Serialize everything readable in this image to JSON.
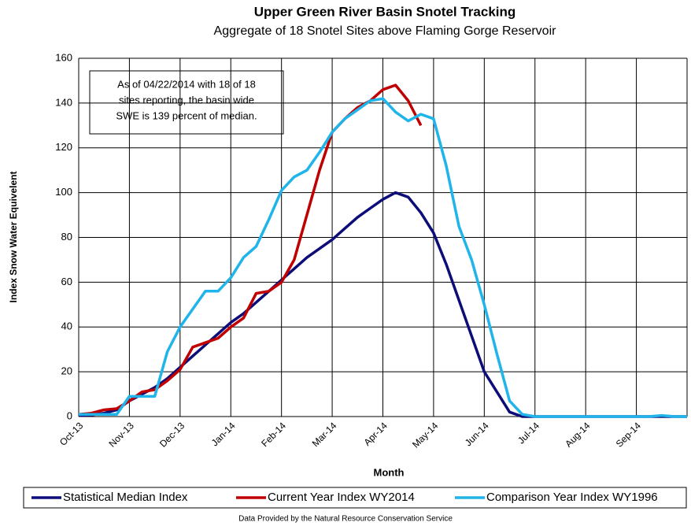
{
  "chart_data": {
    "type": "line",
    "title": "Upper Green River Basin Snotel Tracking",
    "subtitle": "Aggregate of 18 Snotel Sites above Flaming Gorge Reservoir",
    "x_label": "Month",
    "y_label": "Index Snow Water Equivelent",
    "annotation": [
      "As of 04/22/2014 with 18 of 18",
      "sites reporting, the basin wide",
      "SWE is 139 percent of median."
    ],
    "source": "Data Provided by the Natural Resource Conservation Service",
    "categories": [
      "Oct-13",
      null,
      null,
      null,
      "Nov-13",
      null,
      null,
      null,
      "Dec-13",
      null,
      null,
      null,
      "Jan-14",
      null,
      null,
      null,
      "Feb-14",
      null,
      null,
      null,
      "Mar-14",
      null,
      null,
      null,
      "Apr-14",
      null,
      null,
      null,
      "May-14",
      null,
      null,
      null,
      "Jun-14",
      null,
      null,
      null,
      "Jul-14",
      null,
      null,
      null,
      "Aug-14",
      null,
      null,
      null,
      "Sep-14",
      null,
      null,
      null,
      null
    ],
    "series": [
      {
        "name": "Statistical Median Index",
        "color": "#0d0d7a",
        "values": [
          0.5,
          0.7,
          1.5,
          3,
          7,
          10,
          13,
          17,
          22,
          27,
          32,
          37,
          42,
          46,
          51,
          56,
          61,
          66,
          71,
          75,
          79,
          84,
          89,
          93,
          97,
          100,
          98,
          91,
          82,
          68,
          52,
          36,
          20,
          11,
          2,
          0,
          0,
          0,
          0,
          0,
          0,
          0,
          0,
          0,
          0,
          0,
          0,
          0,
          0
        ]
      },
      {
        "name": "Current Year Index WY2014",
        "color": "#c00000",
        "values": [
          1,
          1.5,
          3,
          3.5,
          7,
          11,
          12,
          16,
          21,
          31,
          33,
          35,
          40,
          44,
          55,
          56,
          60,
          70,
          90,
          110,
          127,
          133,
          138,
          141,
          146,
          148,
          141,
          130,
          null,
          null,
          null,
          null,
          null,
          null,
          null,
          null,
          null,
          null,
          null,
          null,
          null,
          null,
          null,
          null,
          null,
          null,
          null,
          null,
          null
        ]
      },
      {
        "name": "Comparison Year Index WY1996",
        "color": "#1fb4ea",
        "values": [
          1,
          1,
          1,
          1,
          9,
          9,
          9,
          29,
          40,
          48,
          56,
          56,
          62,
          71,
          76,
          88,
          101,
          107,
          110,
          118,
          127,
          133,
          137,
          141,
          142,
          136,
          132,
          135,
          133,
          112,
          85,
          70,
          50,
          28,
          7,
          1,
          0,
          0,
          0,
          0,
          0,
          0,
          0,
          0,
          0,
          0,
          0.5,
          0,
          0
        ]
      }
    ],
    "ylim": [
      0,
      160
    ],
    "yticks": [
      0,
      20,
      40,
      60,
      80,
      100,
      120,
      140,
      160
    ],
    "grid": true
  }
}
